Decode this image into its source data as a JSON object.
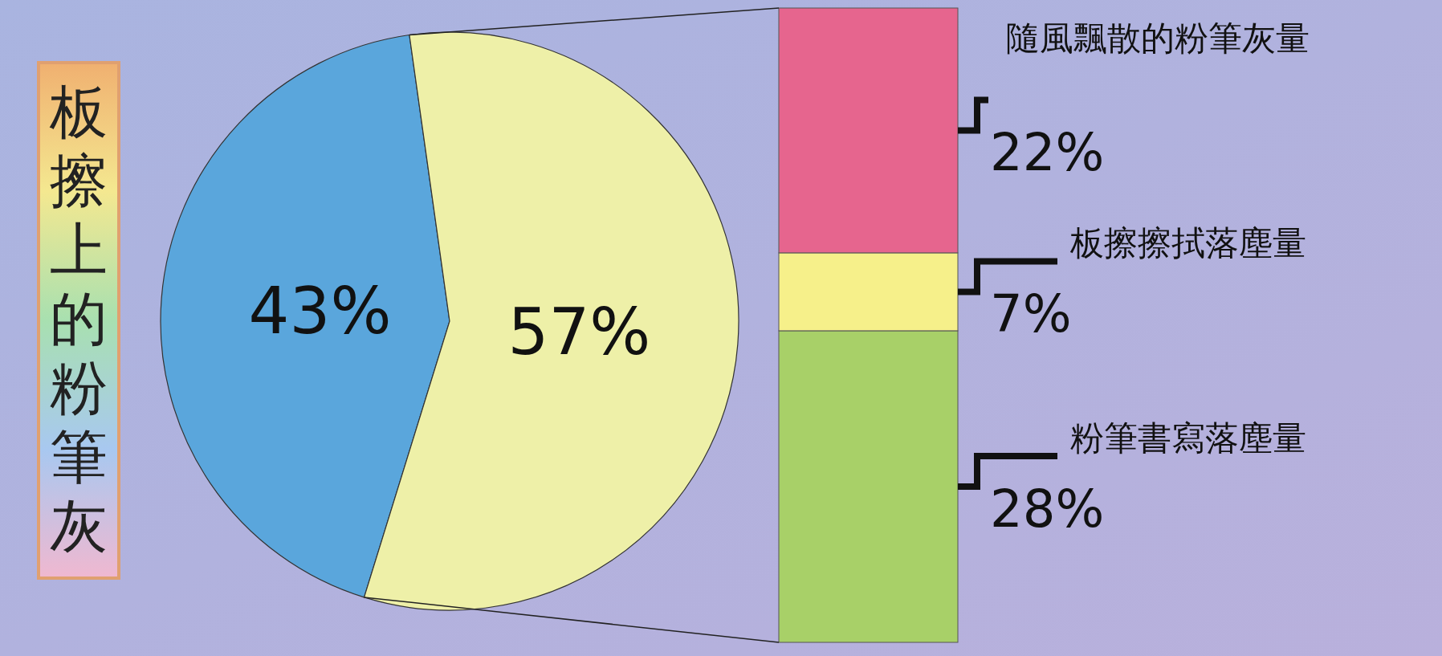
{
  "chart_data": [
    {
      "type": "pie",
      "title": "板擦上的粉筆灰",
      "categories": [
        null,
        null
      ],
      "values": [
        43,
        57
      ],
      "colors": [
        "#5aa6dc",
        "#eef0a8"
      ],
      "value_labels": [
        "43%",
        "57%"
      ]
    },
    {
      "type": "bar",
      "stacked": true,
      "categories": [
        null
      ],
      "series": [
        {
          "name": "粉筆書寫落塵量",
          "color": "#a8d068",
          "values": [
            28
          ],
          "value_labels": [
            "28%"
          ]
        },
        {
          "name": "板擦擦拭落塵量",
          "color": "#f6f08a",
          "values": [
            7
          ],
          "value_labels": [
            "7%"
          ]
        },
        {
          "name": "隨風飄散的粉筆灰量",
          "color": "#e6658e",
          "values": [
            22
          ],
          "value_labels": [
            "22%"
          ]
        }
      ]
    }
  ]
}
